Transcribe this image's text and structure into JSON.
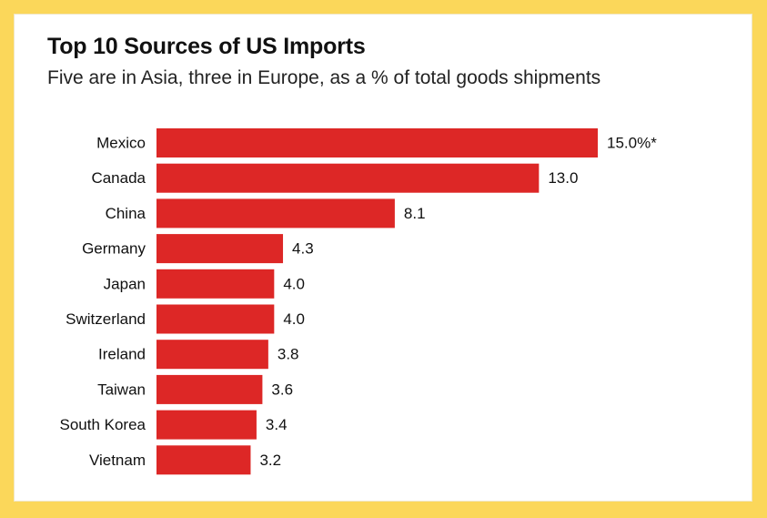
{
  "chart_data": {
    "type": "bar",
    "orientation": "horizontal",
    "title": "Top 10 Sources of US Imports",
    "subtitle": "Five are in Asia, three in Europe, as a % of total goods shipments",
    "xlabel": "",
    "ylabel": "",
    "categories": [
      "Mexico",
      "Canada",
      "China",
      "Germany",
      "Japan",
      "Switzerland",
      "Ireland",
      "Taiwan",
      "South Korea",
      "Vietnam"
    ],
    "values": [
      15.0,
      13.0,
      8.1,
      4.3,
      4.0,
      4.0,
      3.8,
      3.6,
      3.4,
      3.2
    ],
    "value_labels": [
      "15.0%*",
      "13.0",
      "8.1",
      "4.3",
      "4.0",
      "4.0",
      "3.8",
      "3.6",
      "3.4",
      "3.2"
    ],
    "xlim": [
      0,
      15.0
    ],
    "grid": false,
    "legend": "none",
    "colors": {
      "bar": "#dd2726",
      "frame": "#fbd75a",
      "background": "#ffffff"
    }
  }
}
